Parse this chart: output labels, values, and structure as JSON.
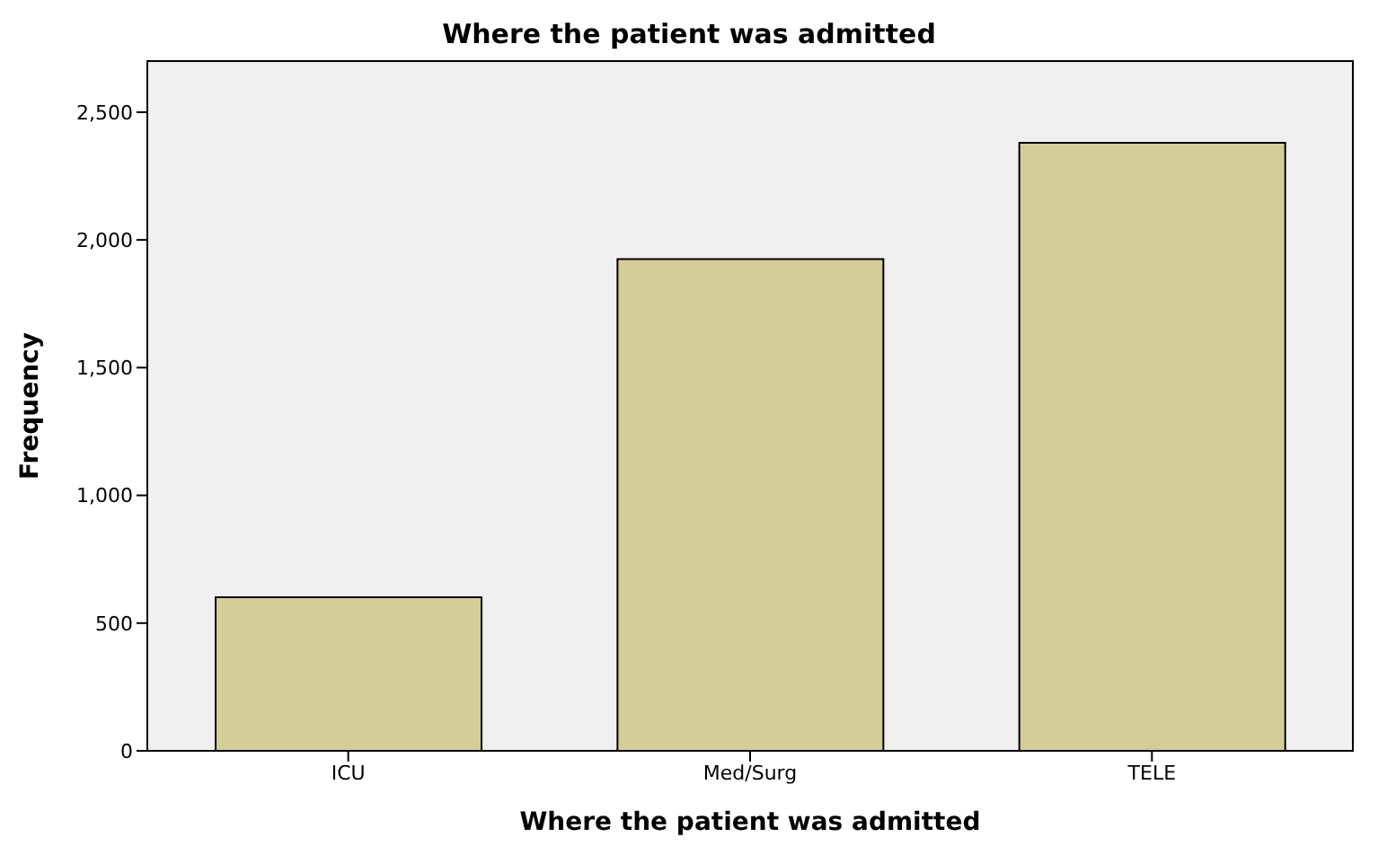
{
  "chart_data": {
    "type": "bar",
    "title": "Where the patient was admitted",
    "xlabel": "Where the patient was admitted",
    "ylabel": "Frequency",
    "categories": [
      "ICU",
      "Med/Surg",
      "TELE"
    ],
    "values": [
      601,
      1925,
      2380
    ],
    "color": "#d3ce97",
    "ylim": [
      0,
      2700
    ],
    "yticks": [
      {
        "value": 0,
        "label": "0"
      },
      {
        "value": 500,
        "label": "500"
      },
      {
        "value": 1000,
        "label": "1,000"
      },
      {
        "value": 1500,
        "label": "1,500"
      },
      {
        "value": 2000,
        "label": "2,000"
      },
      {
        "value": 2500,
        "label": "2,500"
      }
    ]
  }
}
